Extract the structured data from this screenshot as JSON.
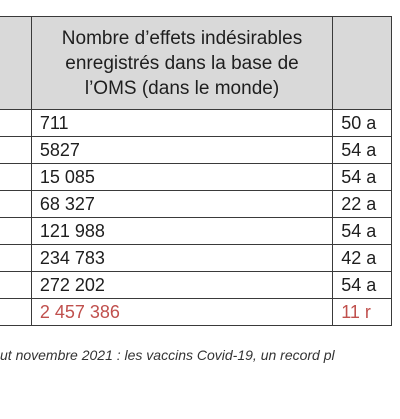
{
  "table": {
    "header": {
      "left": "",
      "middle": "Nombre d’effets indésirables\nenregistrés dans la base de\nl’OMS (dans le monde)",
      "right": ""
    },
    "rows": [
      {
        "count": "711",
        "right": "50 a",
        "highlight": false
      },
      {
        "count": "5827",
        "right": "54 a",
        "highlight": false
      },
      {
        "count": "15 085",
        "right": "54 a",
        "highlight": false
      },
      {
        "count": "68 327",
        "right": "22 a",
        "highlight": false
      },
      {
        "count": "121 988",
        "right": "54 a",
        "highlight": false
      },
      {
        "count": "234 783",
        "right": "42 a",
        "highlight": false
      },
      {
        "count": "272 202",
        "right": "54 a",
        "highlight": false
      },
      {
        "count": "2 457 386",
        "right": "11 r",
        "highlight": true
      }
    ]
  },
  "caption": "ut novembre 2021 : les vaccins Covid-19, un record pl",
  "colors": {
    "header_bg": "#d9d9d9",
    "border": "#3a3a3a",
    "highlight_text": "#c0504d"
  }
}
